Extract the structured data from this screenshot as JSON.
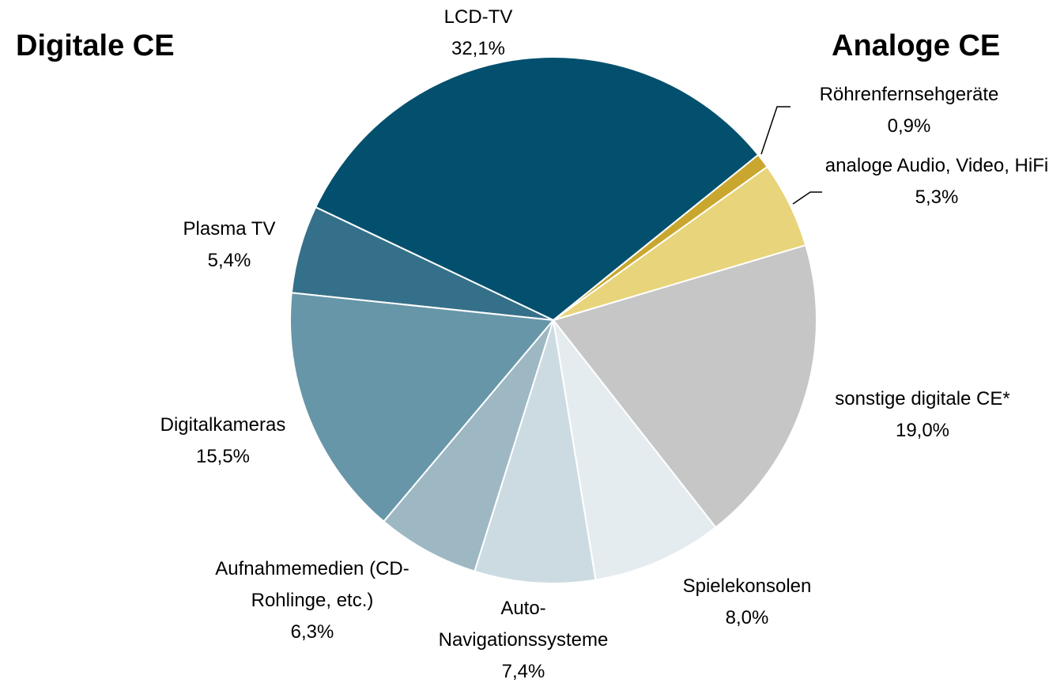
{
  "chart_data": {
    "type": "pie",
    "annotations": [
      "Digitale CE",
      "Analoge CE"
    ],
    "categories": [
      "Röhrenfernsehgeräte",
      "analoge Audio, Video, HiFi",
      "sonstige digitale CE*",
      "Spielekonsolen",
      "Auto-Navigationssysteme",
      "Aufnahmemedien (CD-Rohlinge, etc.)",
      "Digitalkameras",
      "Plasma TV",
      "LCD-TV"
    ],
    "values": [
      0.9,
      5.3,
      19.0,
      8.0,
      7.4,
      6.3,
      15.5,
      5.4,
      32.1
    ],
    "value_labels": [
      "0,9%",
      "5,3%",
      "19,0%",
      "8,0%",
      "7,4%",
      "6,3%",
      "15,5%",
      "5,4%",
      "32,1%"
    ],
    "colors": [
      "#c9a72f",
      "#e8d47a",
      "#c6c6c6",
      "#e5ecf0",
      "#ccdbe2",
      "#9db8c3",
      "#6796a8",
      "#35708a",
      "#03506e"
    ]
  }
}
